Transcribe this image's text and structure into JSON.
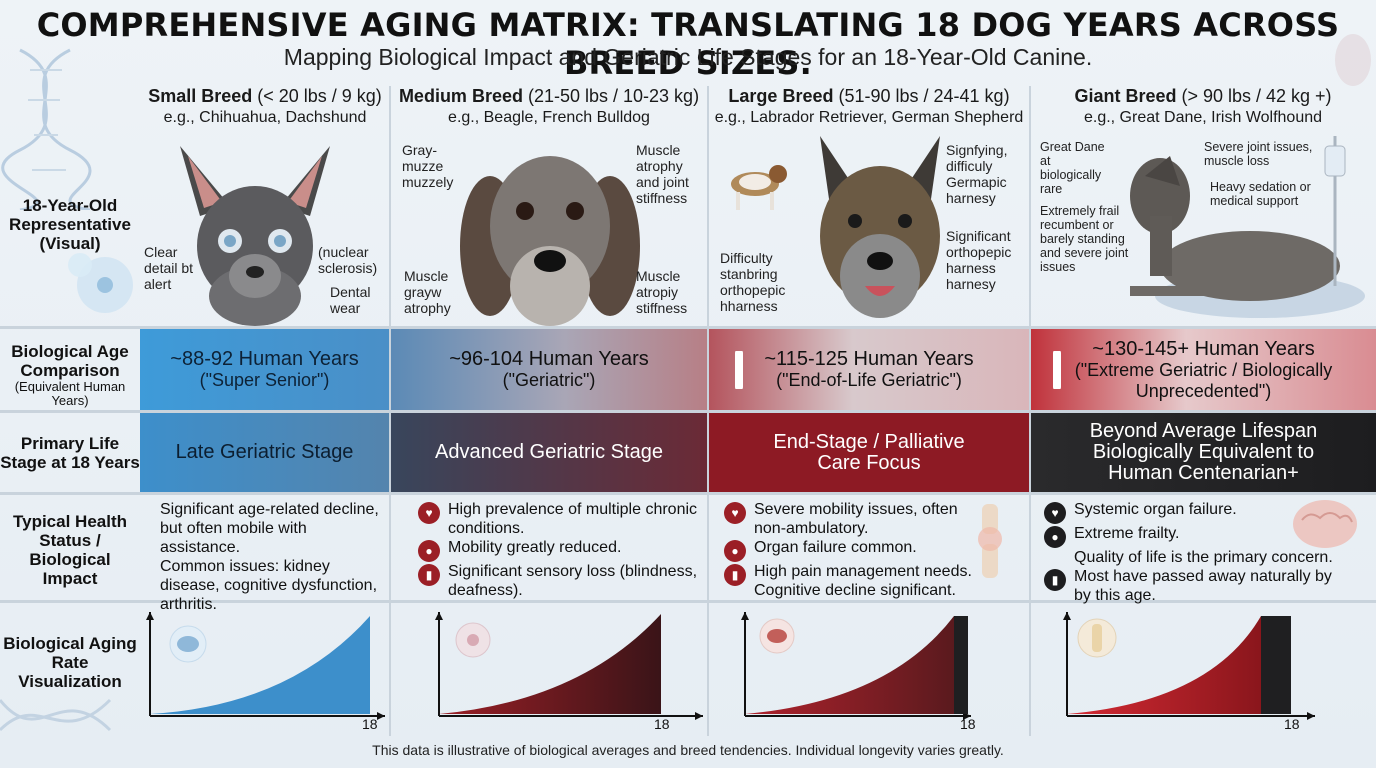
{
  "title": "COMPREHENSIVE AGING MATRIX: TRANSLATING 18 DOG YEARS ACROSS BREED SIZES.",
  "subtitle": "Mapping Biological Impact and Geriatric Life Stages for an 18-Year-Old Canine.",
  "row_labels": {
    "representative": "18-Year-Old Representative (Visual)",
    "bio_age": "Biological Age Comparison",
    "bio_age_sub": "(Equivalent Human Years)",
    "life_stage": "Primary Life Stage at 18 Years",
    "health": "Typical Health Status / Biological Impact",
    "rate": "Biological Aging Rate Visualization"
  },
  "columns": [
    {
      "breed_bold": "Small Breed",
      "breed_size": " (< 20 lbs / 9 kg)",
      "examples": "e.g., Chihuahua, Dachshund",
      "notes": [
        "Clear detail bt alert",
        "(nuclear sclerosis)",
        "Dental wear"
      ],
      "human_years": "~88-92 Human Years",
      "human_label": "(\"Super Senior\")",
      "stage": "Late Geriatric Stage",
      "health": [
        "Significant age-related decline, but often mobile with assistance.",
        "Common issues: kidney disease, cognitive dysfunction, arthritis."
      ],
      "x_tick": "18",
      "color": "#3a8fcc"
    },
    {
      "breed_bold": "Medium Breed",
      "breed_size": " (21-50 lbs / 10-23 kg)",
      "examples": "e.g., Beagle, French Bulldog",
      "notes": [
        "Gray- muzze muzzely",
        "Muscle atrophy and joint stiffness",
        "Muscle grayw atrophy",
        "Muscle atropiy stiffness"
      ],
      "human_years": "~96-104 Human Years",
      "human_label": "(\"Geriatric\")",
      "stage": "Advanced Geriatric Stage",
      "health": [
        "High prevalence of multiple chronic conditions.",
        "Mobility greatly reduced.",
        "Significant sensory loss (blindness, deafness)."
      ],
      "x_tick": "18",
      "color": "#7a2630"
    },
    {
      "breed_bold": "Large Breed",
      "breed_size": " (51-90 lbs / 24-41 kg)",
      "examples": "e.g., Labrador Retriever, German Shepherd",
      "notes": [
        "Signfying, difficuly Germapic harnesy",
        "Significant orthopepic harness harnesy",
        "Difficulty stanbring orthopepic hharness"
      ],
      "human_years": "~115-125 Human Years",
      "human_label": "(\"End-of-Life Geriatric\")",
      "stage": "End-Stage / Palliative Care Focus",
      "health": [
        "Severe mobility issues, often non-ambulatory.",
        "Organ failure common.",
        "High pain management needs.",
        "Cognitive decline significant."
      ],
      "x_tick": "18",
      "color": "#9b1f26"
    },
    {
      "breed_bold": "Giant Breed",
      "breed_size": " (> 90 lbs / 42 kg +)",
      "examples": "e.g., Great Dane, Irish Wolfhound",
      "notes": [
        "Great Dane at biologically rare",
        "Severe joint issues, muscle loss",
        "Heavy sedation or medical support",
        "Extremely frail recumbent or barely standing and severe joint issues"
      ],
      "human_years": "~130-145+ Human Years",
      "human_label": "(\"Extreme Geriatric / Biologically Unprecedented\")",
      "stage": "Beyond Average Lifespan Biologically Equivalent to Human Centenarian+",
      "health": [
        "Systemic organ failure.",
        "Extreme frailty.",
        "Quality of life is the primary concern.",
        "Most have passed away naturally by by this age."
      ],
      "x_tick": "18",
      "color": "#c0202a"
    }
  ],
  "footer": "This data is illustrative of biological averages and breed tendencies. Individual longevity varies greatly."
}
